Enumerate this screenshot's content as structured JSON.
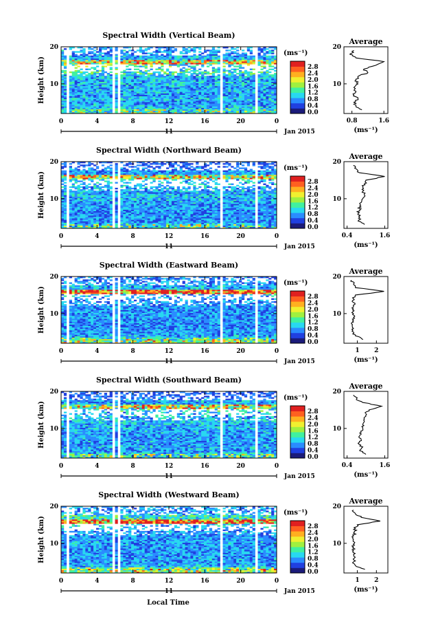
{
  "figure": {
    "xlabel": "Local Time",
    "date_label": "Jan 2015",
    "day_label": "11",
    "colorbar_unit": "(ms⁻¹)",
    "colorbar_ticks": [
      "0.0",
      "0.4",
      "0.8",
      "1.2",
      "1.6",
      "2.0",
      "2.4",
      "2.8"
    ],
    "colormap": [
      "#1b1b7a",
      "#2040e0",
      "#2a8cff",
      "#28d8f0",
      "#40f0a0",
      "#a0f040",
      "#f0f030",
      "#ffb020",
      "#ff6020",
      "#e02020"
    ],
    "avg_title": "Average",
    "avg_xlabel": "(ms⁻¹)"
  },
  "chart_data": [
    {
      "type": "heatmap",
      "title": "Spectral Width (Vertical Beam)",
      "ylabel": "Height (km)",
      "xticks": [
        "0",
        "4",
        "8",
        "12",
        "16",
        "20",
        "0"
      ],
      "yticks": [
        "10",
        "20"
      ],
      "xlim": [
        0,
        24
      ],
      "ylim": [
        2,
        20
      ],
      "clim": [
        0.0,
        3.0
      ],
      "data_gaps_hours": [
        [
          0.6,
          0.9
        ],
        [
          1.4,
          1.6
        ],
        [
          5.6,
          5.9
        ],
        [
          6.3,
          6.7
        ],
        [
          17.6,
          17.9
        ],
        [
          21.6,
          21.9
        ]
      ],
      "average_profile": {
        "xticks": [
          "0.8",
          "1.6"
        ],
        "xlim": [
          0.6,
          1.7
        ],
        "height_km": [
          3,
          4,
          5,
          6,
          7,
          8,
          9,
          10,
          11,
          12,
          13,
          14,
          15,
          16,
          17,
          18,
          19
        ],
        "width_ms": [
          1.05,
          0.9,
          0.85,
          0.95,
          0.85,
          0.9,
          0.85,
          0.95,
          0.9,
          0.95,
          1.2,
          1.1,
          1.4,
          1.6,
          0.9,
          0.75,
          0.85
        ]
      }
    },
    {
      "type": "heatmap",
      "title": "Spectral Width (Northward Beam)",
      "ylabel": "Height (km)",
      "xticks": [
        "0",
        "4",
        "8",
        "12",
        "16",
        "20",
        "0"
      ],
      "yticks": [
        "10",
        "20"
      ],
      "xlim": [
        0,
        24
      ],
      "ylim": [
        2,
        20
      ],
      "clim": [
        0.0,
        3.0
      ],
      "data_gaps_hours": [
        [
          0.6,
          0.9
        ],
        [
          1.4,
          1.6
        ],
        [
          5.6,
          5.9
        ],
        [
          6.3,
          6.7
        ],
        [
          17.6,
          17.9
        ],
        [
          21.6,
          21.9
        ]
      ],
      "average_profile": {
        "xticks": [
          "0.4",
          "1.6"
        ],
        "xlim": [
          0.3,
          1.7
        ],
        "height_km": [
          3,
          4,
          5,
          6,
          7,
          8,
          9,
          10,
          11,
          12,
          13,
          14,
          15,
          16,
          17,
          18,
          19
        ],
        "width_ms": [
          0.95,
          0.75,
          0.8,
          0.75,
          0.8,
          0.8,
          0.85,
          0.9,
          0.95,
          0.9,
          0.9,
          0.95,
          1.0,
          1.6,
          0.8,
          0.7,
          0.6
        ]
      }
    },
    {
      "type": "heatmap",
      "title": "Spectral Width (Eastward Beam)",
      "ylabel": "Height (km)",
      "xticks": [
        "0",
        "4",
        "8",
        "12",
        "16",
        "20",
        "0"
      ],
      "yticks": [
        "10",
        "20"
      ],
      "xlim": [
        0,
        24
      ],
      "ylim": [
        2,
        20
      ],
      "clim": [
        0.0,
        3.0
      ],
      "data_gaps_hours": [
        [
          0.6,
          0.9
        ],
        [
          5.6,
          5.9
        ],
        [
          6.3,
          6.7
        ],
        [
          17.6,
          17.9
        ],
        [
          21.6,
          21.9
        ]
      ],
      "average_profile": {
        "xticks": [
          "1",
          "2"
        ],
        "xlim": [
          0.3,
          2.6
        ],
        "height_km": [
          3,
          4,
          5,
          6,
          7,
          8,
          9,
          10,
          11,
          12,
          13,
          14,
          15,
          16,
          17,
          18,
          19
        ],
        "width_ms": [
          1.3,
          0.9,
          0.8,
          0.8,
          0.75,
          0.75,
          0.8,
          0.8,
          0.75,
          0.8,
          0.8,
          0.8,
          0.9,
          2.4,
          0.9,
          0.8,
          0.7
        ]
      }
    },
    {
      "type": "heatmap",
      "title": "Spectral Width (Southward Beam)",
      "ylabel": "Height (km)",
      "xticks": [
        "0",
        "4",
        "8",
        "12",
        "16",
        "20",
        "0"
      ],
      "yticks": [
        "10",
        "20"
      ],
      "xlim": [
        0,
        24
      ],
      "ylim": [
        2,
        20
      ],
      "clim": [
        0.0,
        3.0
      ],
      "data_gaps_hours": [
        [
          0.6,
          0.9
        ],
        [
          1.4,
          1.6
        ],
        [
          5.6,
          5.9
        ],
        [
          6.3,
          6.7
        ],
        [
          17.6,
          17.9
        ],
        [
          21.6,
          21.9
        ]
      ],
      "average_profile": {
        "xticks": [
          "0.4",
          "1.6"
        ],
        "xlim": [
          0.3,
          1.7
        ],
        "height_km": [
          3,
          4,
          5,
          6,
          7,
          8,
          9,
          10,
          11,
          12,
          13,
          14,
          15,
          16,
          17,
          18,
          19
        ],
        "width_ms": [
          1.0,
          0.8,
          0.9,
          0.75,
          0.85,
          0.8,
          0.85,
          0.9,
          0.9,
          0.95,
          0.95,
          1.0,
          1.1,
          1.5,
          0.9,
          0.7,
          0.6
        ]
      }
    },
    {
      "type": "heatmap",
      "title": "Spectral Width (Westward Beam)",
      "ylabel": "Height (km)",
      "xticks": [
        "0",
        "4",
        "8",
        "12",
        "16",
        "20",
        "0"
      ],
      "yticks": [
        "10",
        "20"
      ],
      "xlim": [
        0,
        24
      ],
      "ylim": [
        2,
        20
      ],
      "clim": [
        0.0,
        3.0
      ],
      "data_gaps_hours": [
        [
          0.6,
          0.9
        ],
        [
          1.4,
          1.6
        ],
        [
          5.6,
          5.9
        ],
        [
          6.3,
          6.7
        ],
        [
          17.6,
          17.9
        ],
        [
          21.6,
          21.9
        ]
      ],
      "average_profile": {
        "xticks": [
          "1",
          "2"
        ],
        "xlim": [
          0.3,
          2.6
        ],
        "height_km": [
          3,
          4,
          5,
          6,
          7,
          8,
          9,
          10,
          11,
          12,
          13,
          14,
          15,
          16,
          17,
          18,
          19
        ],
        "width_ms": [
          1.4,
          0.9,
          0.8,
          0.85,
          0.8,
          0.8,
          0.8,
          0.85,
          0.8,
          0.8,
          0.85,
          0.9,
          1.0,
          2.2,
          1.2,
          0.9,
          0.8
        ]
      }
    }
  ]
}
